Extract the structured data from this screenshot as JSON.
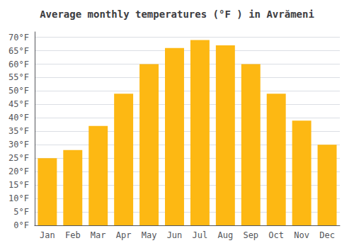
{
  "chart_data": {
    "type": "bar",
    "title": "Average monthly temperatures (°F ) in Avrămeni",
    "categories": [
      "Jan",
      "Feb",
      "Mar",
      "Apr",
      "May",
      "Jun",
      "Jul",
      "Aug",
      "Sep",
      "Oct",
      "Nov",
      "Dec"
    ],
    "values": [
      25,
      28,
      37,
      49,
      60,
      66,
      69,
      67,
      60,
      49,
      39,
      30
    ],
    "color": "#FDB813",
    "ylim": [
      0,
      72
    ],
    "yticks": [
      {
        "value": 0,
        "label": "0°F"
      },
      {
        "value": 5,
        "label": "5°F"
      },
      {
        "value": 10,
        "label": "10°F"
      },
      {
        "value": 15,
        "label": "15°F"
      },
      {
        "value": 20,
        "label": "20°F"
      },
      {
        "value": 25,
        "label": "25°F"
      },
      {
        "value": 30,
        "label": "30°F"
      },
      {
        "value": 35,
        "label": "35°F"
      },
      {
        "value": 40,
        "label": "40°F"
      },
      {
        "value": 45,
        "label": "45°F"
      },
      {
        "value": 50,
        "label": "50°F"
      },
      {
        "value": 55,
        "label": "55°F"
      },
      {
        "value": 60,
        "label": "60°F"
      },
      {
        "value": 65,
        "label": "65°F"
      },
      {
        "value": 70,
        "label": "70°F"
      }
    ],
    "grid": true
  }
}
